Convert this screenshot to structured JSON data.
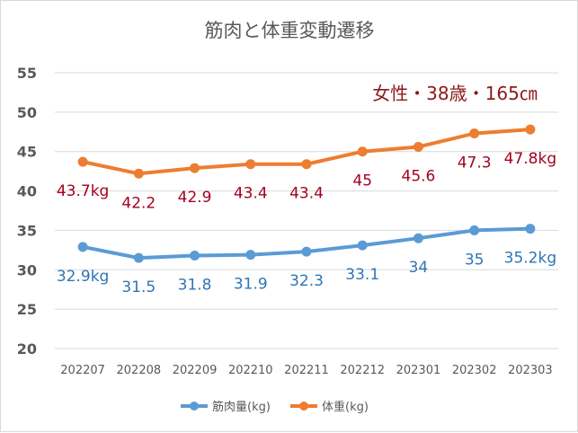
{
  "chart_data": {
    "type": "line",
    "title": "筋肉と体重変動遷移",
    "annotation": "女性・38歳・165㎝",
    "categories": [
      "202207",
      "202208",
      "202209",
      "202210",
      "202211",
      "202212",
      "202301",
      "202302",
      "202303"
    ],
    "ylim": [
      20,
      55
    ],
    "yticks": [
      "20",
      "25",
      "30",
      "35",
      "40",
      "45",
      "50",
      "55"
    ],
    "grid": true,
    "legend_position": "bottom",
    "series": [
      {
        "name": "筋肉量(kg)",
        "color": "#5b9bd5",
        "label_color": "#2e75b6",
        "values": [
          32.9,
          31.5,
          31.8,
          31.9,
          32.3,
          33.1,
          34,
          35,
          35.2
        ],
        "labels": [
          "32.9kg",
          "31.5",
          "31.8",
          "31.9",
          "32.3",
          "33.1",
          "34",
          "35",
          "35.2kg"
        ]
      },
      {
        "name": "体重(kg)",
        "color": "#ed7d31",
        "label_color": "#a50021",
        "values": [
          43.7,
          42.2,
          42.9,
          43.4,
          43.4,
          45,
          45.6,
          47.3,
          47.8
        ],
        "labels": [
          "43.7kg",
          "42.2",
          "42.9",
          "43.4",
          "43.4",
          "45",
          "45.6",
          "47.3",
          "47.8kg"
        ]
      }
    ]
  }
}
